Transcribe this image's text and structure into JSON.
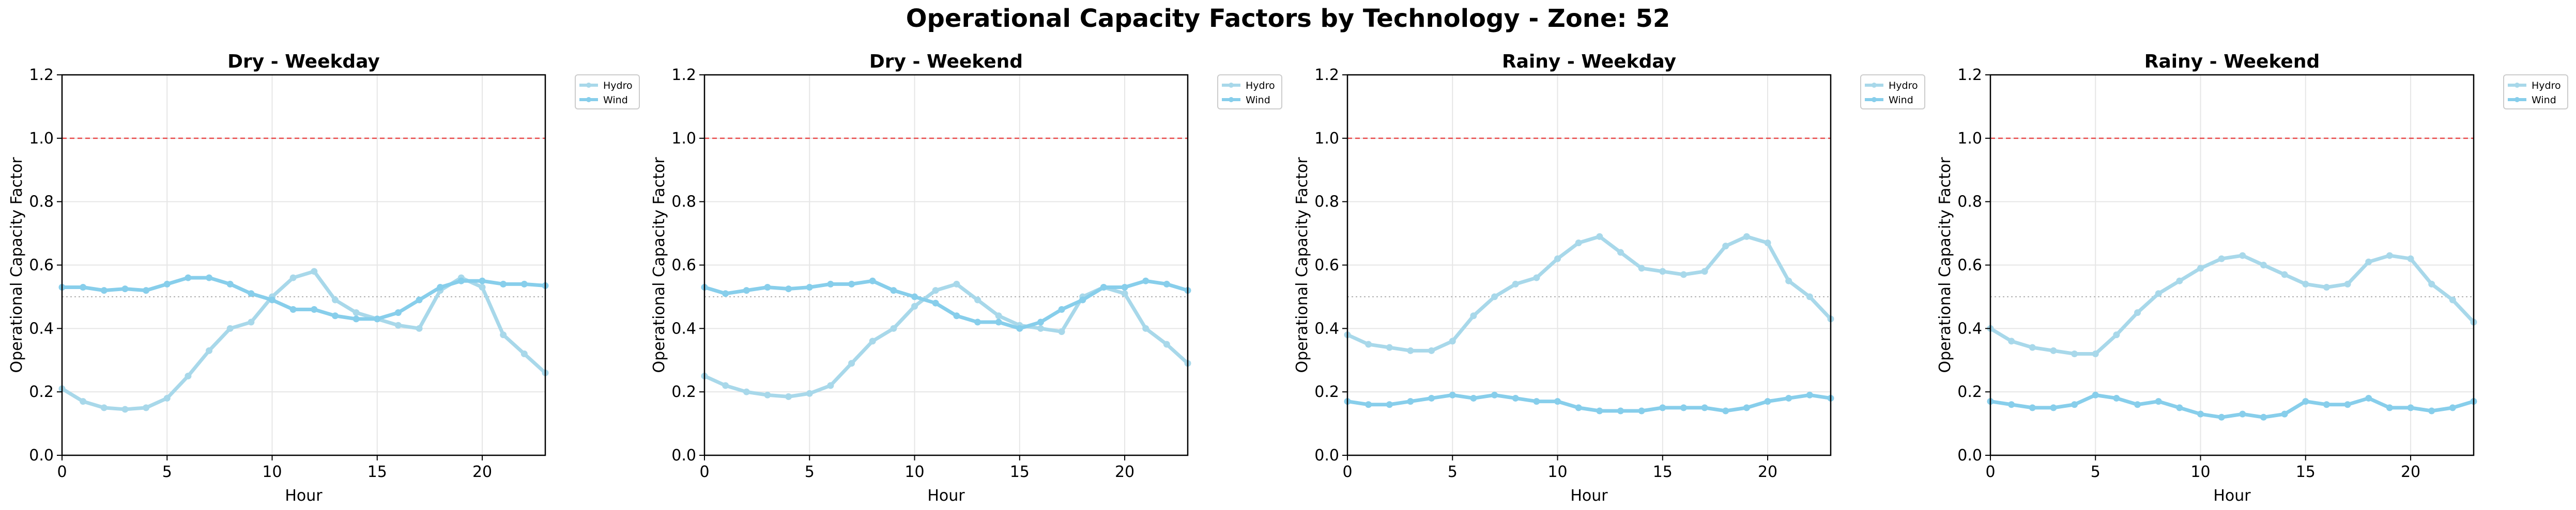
{
  "figure": {
    "suptitle": "Operational Capacity Factors by Technology - Zone: 52"
  },
  "colors": {
    "hydro": "#a8d8ea",
    "wind": "#87ceeb",
    "reference_line": "#e84a4a",
    "half_line": "#b0b0b0",
    "grid": "#e6e6e6",
    "axis": "#000000"
  },
  "chart_data": [
    {
      "type": "line",
      "title": "Dry - Weekday",
      "xlabel": "Hour",
      "ylabel": "Operational Capacity Factor",
      "xlim": [
        0,
        23
      ],
      "ylim": [
        0,
        1.2
      ],
      "xticks": [
        0,
        5,
        10,
        15,
        20
      ],
      "yticks": [
        "0.0",
        "0.2",
        "0.4",
        "0.6",
        "0.8",
        "1.0",
        "1.2"
      ],
      "grid": true,
      "legend_position": "outside top-right",
      "reference_lines": [
        1.0,
        0.5
      ],
      "x": [
        0,
        1,
        2,
        3,
        4,
        5,
        6,
        7,
        8,
        9,
        10,
        11,
        12,
        13,
        14,
        15,
        16,
        17,
        18,
        19,
        20,
        21,
        22,
        23
      ],
      "series": [
        {
          "name": "Hydro",
          "values": [
            0.21,
            0.17,
            0.15,
            0.145,
            0.15,
            0.18,
            0.25,
            0.33,
            0.4,
            0.42,
            0.5,
            0.56,
            0.58,
            0.49,
            0.45,
            0.43,
            0.41,
            0.4,
            0.52,
            0.56,
            0.53,
            0.38,
            0.32,
            0.26
          ]
        },
        {
          "name": "Wind",
          "values": [
            0.53,
            0.53,
            0.52,
            0.525,
            0.52,
            0.54,
            0.56,
            0.56,
            0.54,
            0.51,
            0.49,
            0.46,
            0.46,
            0.44,
            0.43,
            0.43,
            0.45,
            0.49,
            0.53,
            0.55,
            0.55,
            0.54,
            0.54,
            0.535
          ]
        }
      ]
    },
    {
      "type": "line",
      "title": "Dry - Weekend",
      "xlabel": "Hour",
      "ylabel": "Operational Capacity Factor",
      "xlim": [
        0,
        23
      ],
      "ylim": [
        0,
        1.2
      ],
      "xticks": [
        0,
        5,
        10,
        15,
        20
      ],
      "yticks": [
        "0.0",
        "0.2",
        "0.4",
        "0.6",
        "0.8",
        "1.0",
        "1.2"
      ],
      "grid": true,
      "legend_position": "outside top-right",
      "reference_lines": [
        1.0,
        0.5
      ],
      "x": [
        0,
        1,
        2,
        3,
        4,
        5,
        6,
        7,
        8,
        9,
        10,
        11,
        12,
        13,
        14,
        15,
        16,
        17,
        18,
        19,
        20,
        21,
        22,
        23
      ],
      "series": [
        {
          "name": "Hydro",
          "values": [
            0.25,
            0.22,
            0.2,
            0.19,
            0.185,
            0.195,
            0.22,
            0.29,
            0.36,
            0.4,
            0.47,
            0.52,
            0.54,
            0.49,
            0.44,
            0.41,
            0.4,
            0.39,
            0.5,
            0.53,
            0.51,
            0.4,
            0.35,
            0.29
          ]
        },
        {
          "name": "Wind",
          "values": [
            0.53,
            0.51,
            0.52,
            0.53,
            0.525,
            0.53,
            0.54,
            0.54,
            0.55,
            0.52,
            0.5,
            0.48,
            0.44,
            0.42,
            0.42,
            0.4,
            0.42,
            0.46,
            0.49,
            0.53,
            0.53,
            0.55,
            0.54,
            0.52
          ]
        }
      ]
    },
    {
      "type": "line",
      "title": "Rainy - Weekday",
      "xlabel": "Hour",
      "ylabel": "Operational Capacity Factor",
      "xlim": [
        0,
        23
      ],
      "ylim": [
        0,
        1.2
      ],
      "xticks": [
        0,
        5,
        10,
        15,
        20
      ],
      "yticks": [
        "0.0",
        "0.2",
        "0.4",
        "0.6",
        "0.8",
        "1.0",
        "1.2"
      ],
      "grid": true,
      "legend_position": "outside top-right",
      "reference_lines": [
        1.0,
        0.5
      ],
      "x": [
        0,
        1,
        2,
        3,
        4,
        5,
        6,
        7,
        8,
        9,
        10,
        11,
        12,
        13,
        14,
        15,
        16,
        17,
        18,
        19,
        20,
        21,
        22,
        23
      ],
      "series": [
        {
          "name": "Hydro",
          "values": [
            0.38,
            0.35,
            0.34,
            0.33,
            0.33,
            0.36,
            0.44,
            0.5,
            0.54,
            0.56,
            0.62,
            0.67,
            0.69,
            0.64,
            0.59,
            0.58,
            0.57,
            0.58,
            0.66,
            0.69,
            0.67,
            0.55,
            0.5,
            0.43
          ]
        },
        {
          "name": "Wind",
          "values": [
            0.17,
            0.16,
            0.16,
            0.17,
            0.18,
            0.19,
            0.18,
            0.19,
            0.18,
            0.17,
            0.17,
            0.15,
            0.14,
            0.14,
            0.14,
            0.15,
            0.15,
            0.15,
            0.14,
            0.15,
            0.17,
            0.18,
            0.19,
            0.18
          ]
        }
      ]
    },
    {
      "type": "line",
      "title": "Rainy - Weekend",
      "xlabel": "Hour",
      "ylabel": "Operational Capacity Factor",
      "xlim": [
        0,
        23
      ],
      "ylim": [
        0,
        1.2
      ],
      "xticks": [
        0,
        5,
        10,
        15,
        20
      ],
      "yticks": [
        "0.0",
        "0.2",
        "0.4",
        "0.6",
        "0.8",
        "1.0",
        "1.2"
      ],
      "grid": true,
      "legend_position": "outside top-right",
      "reference_lines": [
        1.0,
        0.5
      ],
      "x": [
        0,
        1,
        2,
        3,
        4,
        5,
        6,
        7,
        8,
        9,
        10,
        11,
        12,
        13,
        14,
        15,
        16,
        17,
        18,
        19,
        20,
        21,
        22,
        23
      ],
      "series": [
        {
          "name": "Hydro",
          "values": [
            0.4,
            0.36,
            0.34,
            0.33,
            0.32,
            0.32,
            0.38,
            0.45,
            0.51,
            0.55,
            0.59,
            0.62,
            0.63,
            0.6,
            0.57,
            0.54,
            0.53,
            0.54,
            0.61,
            0.63,
            0.62,
            0.54,
            0.49,
            0.42
          ]
        },
        {
          "name": "Wind",
          "values": [
            0.17,
            0.16,
            0.15,
            0.15,
            0.16,
            0.19,
            0.18,
            0.16,
            0.17,
            0.15,
            0.13,
            0.12,
            0.13,
            0.12,
            0.13,
            0.17,
            0.16,
            0.16,
            0.18,
            0.15,
            0.15,
            0.14,
            0.15,
            0.17
          ]
        }
      ]
    }
  ]
}
